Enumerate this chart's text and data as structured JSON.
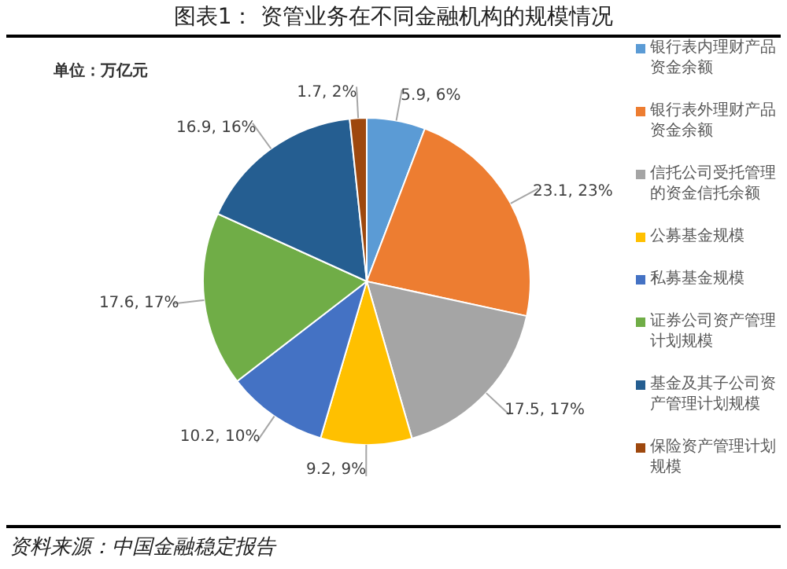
{
  "chart_data": {
    "type": "pie",
    "title": "图表1：  资管业务在不同金融机构的规模情况",
    "annotations": [
      "单位：万亿元",
      "资料来源：中国金融稳定报告"
    ],
    "categories": [
      "银行表内理财产品资金余额",
      "银行表外理财产品资金余额",
      "信托公司受托管理的资金信托余额",
      "公募基金规模",
      "私募基金规模",
      "证券公司资产管理计划规模",
      "基金及其子公司资产管理计划规模",
      "保险资产管理计划规模"
    ],
    "values": [
      5.9,
      23.1,
      17.5,
      9.2,
      10.2,
      17.6,
      16.9,
      1.7
    ],
    "value_labels": [
      "5.9, 6%",
      "23.1, 23%",
      "17.5, 17%",
      "9.2, 9%",
      "10.2, 10%",
      "17.6, 17%",
      "16.9, 16%",
      "1.7, 2%"
    ],
    "colors": [
      "#5b9bd5",
      "#ed7d31",
      "#a5a5a5",
      "#ffc000",
      "#4472c4",
      "#70ad47",
      "#255e91",
      "#9e480e"
    ],
    "legend": "right"
  }
}
